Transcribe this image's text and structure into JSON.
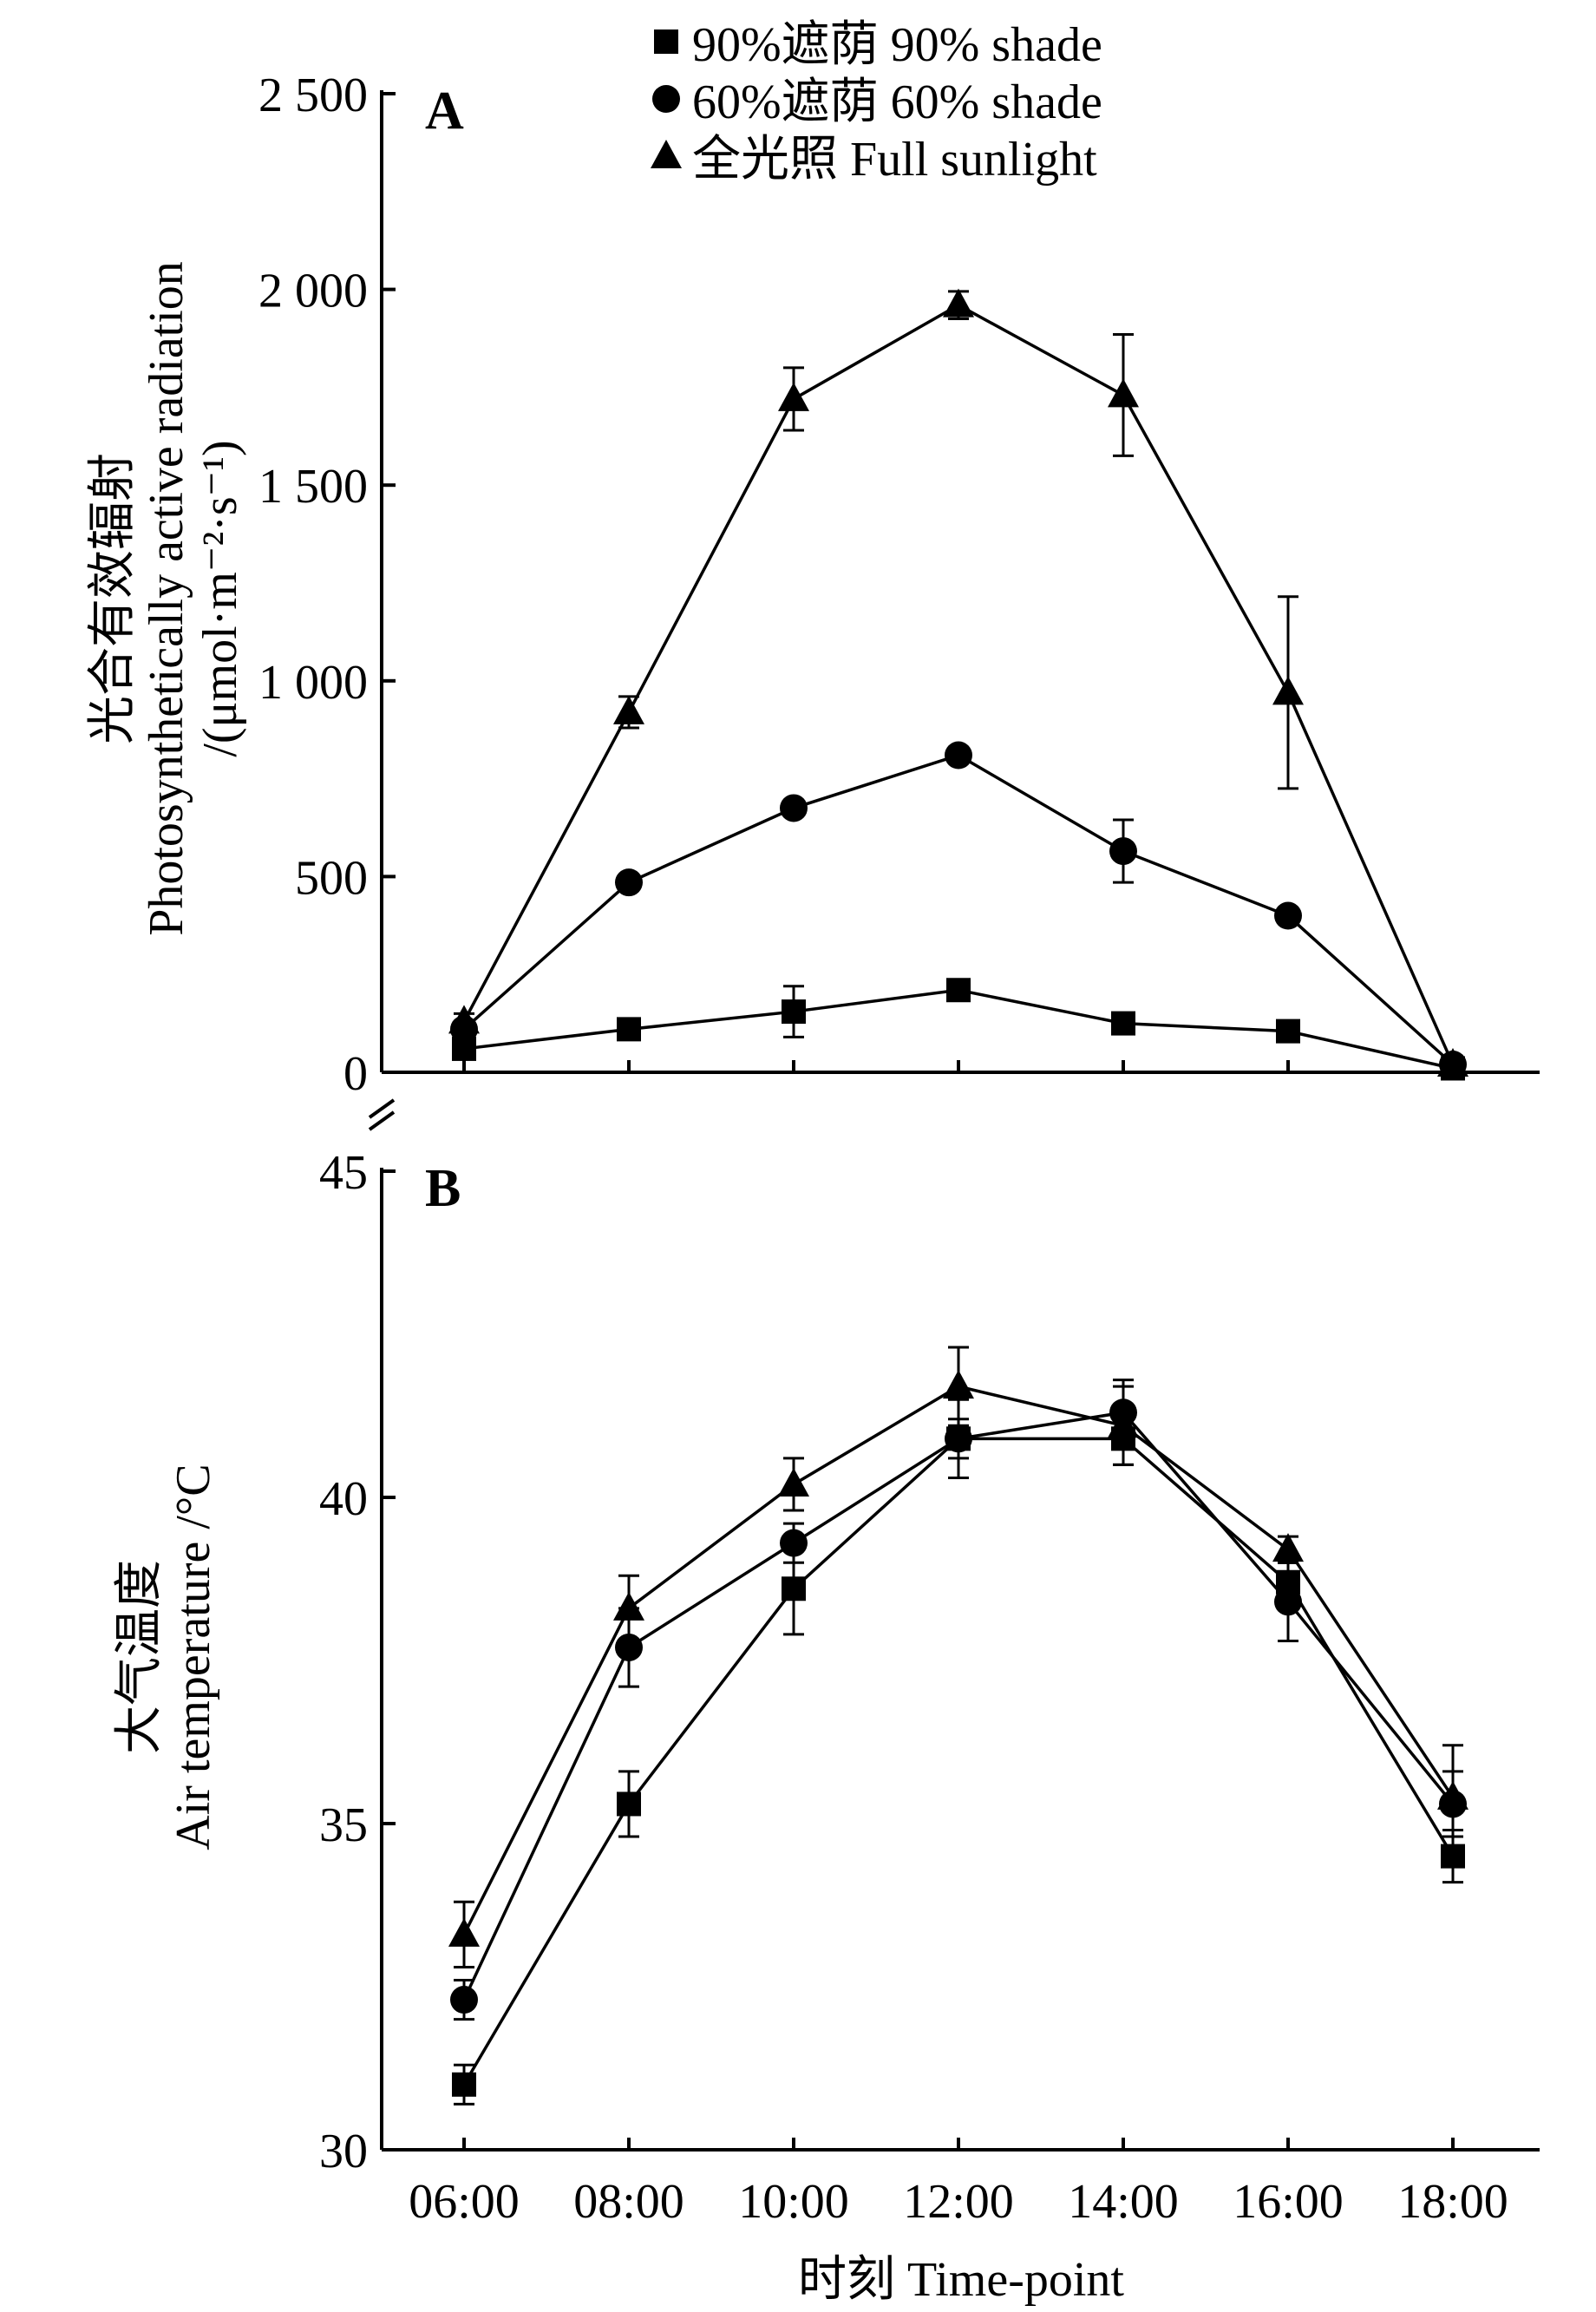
{
  "chart_data": [
    {
      "panel": "A",
      "type": "line",
      "ylabel": [
        "光合有效辐射",
        "Photosynthetically active radiation",
        "/(μmol·m⁻²·s⁻¹)"
      ],
      "ylim": [
        0,
        2500
      ],
      "yticks": [
        0,
        500,
        1000,
        1500,
        2000,
        2500
      ],
      "ytick_labels": [
        "0",
        "500",
        "1 000",
        "1 500",
        "2 000",
        "2 500"
      ],
      "x": [
        "06:00",
        "08:00",
        "10:00",
        "12:00",
        "14:00",
        "16:00",
        "18:00"
      ],
      "series": [
        {
          "name": "90%遮荫 90% shade",
          "marker": "square",
          "values": [
            60,
            110,
            155,
            210,
            125,
            105,
            10
          ],
          "err": [
            25,
            20,
            65,
            20,
            20,
            15,
            5
          ]
        },
        {
          "name": "60%遮荫 60% shade",
          "marker": "circle",
          "values": [
            110,
            485,
            675,
            810,
            565,
            400,
            20
          ],
          "err": [
            15,
            20,
            15,
            15,
            80,
            15,
            5
          ]
        },
        {
          "name": "全光照 Full sunlight",
          "marker": "triangle",
          "values": [
            130,
            920,
            1720,
            1960,
            1730,
            970,
            20
          ],
          "err": [
            20,
            40,
            80,
            35,
            155,
            245,
            5
          ]
        }
      ]
    },
    {
      "panel": "B",
      "type": "line",
      "ylabel": [
        "大气温度",
        "Air temperature /°C"
      ],
      "ylim": [
        30,
        45
      ],
      "yticks": [
        30,
        35,
        40,
        45
      ],
      "ytick_labels": [
        "30",
        "35",
        "40",
        "45"
      ],
      "x": [
        "06:00",
        "08:00",
        "10:00",
        "12:00",
        "14:00",
        "16:00",
        "18:00"
      ],
      "xlabel": "时刻 Time-point",
      "series": [
        {
          "name": "90%遮荫 90% shade",
          "marker": "square",
          "values": [
            31.0,
            35.3,
            38.6,
            40.9,
            40.9,
            38.7,
            34.5
          ],
          "err": [
            0.3,
            0.5,
            0.7,
            0.3,
            0.4,
            0.3,
            0.4
          ]
        },
        {
          "name": "60%遮荫 60% shade",
          "marker": "circle",
          "values": [
            32.3,
            37.7,
            39.3,
            40.9,
            41.3,
            38.4,
            35.3
          ],
          "err": [
            0.3,
            0.6,
            0.3,
            0.6,
            0.5,
            0.6,
            0.5
          ]
        },
        {
          "name": "全光照 Full sunlight",
          "marker": "triangle",
          "values": [
            33.3,
            38.3,
            40.2,
            41.7,
            41.1,
            39.2,
            35.4
          ],
          "err": [
            0.5,
            0.5,
            0.4,
            0.6,
            0.6,
            0.2,
            0.8
          ]
        }
      ]
    }
  ]
}
